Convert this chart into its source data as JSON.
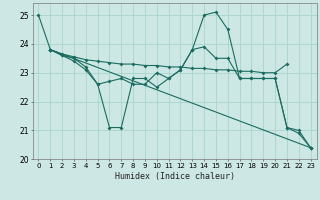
{
  "xlabel": "Humidex (Indice chaleur)",
  "bg_color": "#cde8e4",
  "grid_color": "#a8d4cc",
  "line_color": "#1a6b60",
  "xlim": [
    -0.5,
    23.5
  ],
  "ylim": [
    20,
    25.4
  ],
  "yticks": [
    20,
    21,
    22,
    23,
    24,
    25
  ],
  "xticks": [
    0,
    1,
    2,
    3,
    4,
    5,
    6,
    7,
    8,
    9,
    10,
    11,
    12,
    13,
    14,
    15,
    16,
    17,
    18,
    19,
    20,
    21,
    22,
    23
  ],
  "lines": [
    {
      "x": [
        0,
        1,
        2,
        3,
        4,
        5,
        6,
        7,
        8,
        9,
        10,
        11,
        12,
        13,
        14,
        15,
        16,
        17,
        18,
        19,
        20,
        21,
        22,
        23
      ],
      "y": [
        25.0,
        23.8,
        23.6,
        23.5,
        23.2,
        22.6,
        21.1,
        21.1,
        22.8,
        22.8,
        22.5,
        22.8,
        23.1,
        23.8,
        25.0,
        25.1,
        24.5,
        22.8,
        22.8,
        22.8,
        22.8,
        21.1,
        21.0,
        20.4
      ]
    },
    {
      "x": [
        1,
        2,
        3,
        4,
        5,
        6,
        7,
        8,
        9,
        10,
        11,
        12,
        13,
        14,
        15,
        16,
        17,
        18,
        19,
        20,
        21
      ],
      "y": [
        23.8,
        23.65,
        23.55,
        23.45,
        23.4,
        23.35,
        23.3,
        23.3,
        23.25,
        23.25,
        23.2,
        23.2,
        23.15,
        23.15,
        23.1,
        23.1,
        23.05,
        23.05,
        23.0,
        23.0,
        23.3
      ]
    },
    {
      "x": [
        1,
        2,
        3,
        4,
        5,
        6,
        7,
        8,
        9,
        10,
        11,
        12,
        13,
        14,
        15,
        16,
        17,
        18,
        19,
        20,
        21,
        22,
        23
      ],
      "y": [
        23.8,
        23.6,
        23.4,
        23.1,
        22.6,
        22.7,
        22.8,
        22.6,
        22.6,
        23.0,
        22.8,
        23.1,
        23.8,
        23.9,
        23.5,
        23.5,
        22.8,
        22.8,
        22.8,
        22.8,
        21.1,
        20.9,
        20.4
      ]
    },
    {
      "x": [
        1,
        23
      ],
      "y": [
        23.8,
        20.4
      ]
    }
  ]
}
